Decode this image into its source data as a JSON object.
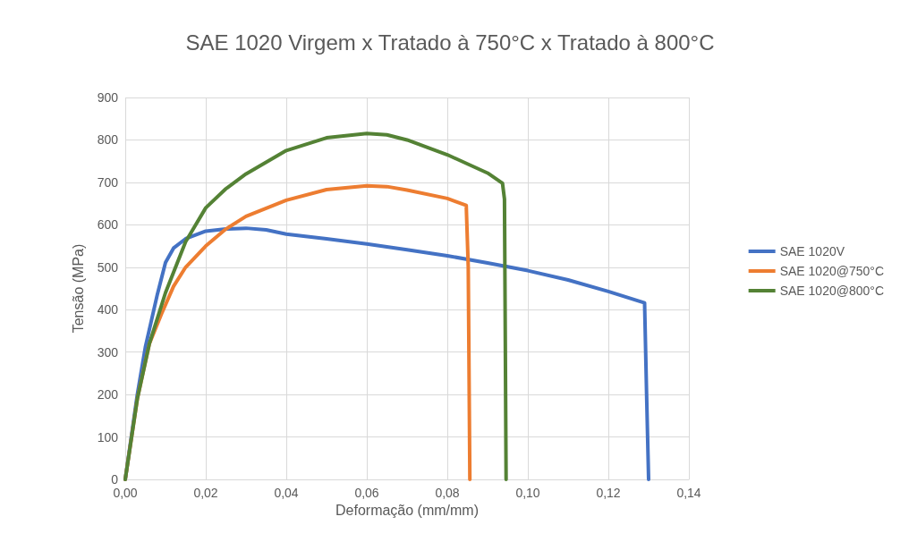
{
  "chart_data": {
    "type": "line",
    "title": "SAE 1020 Virgem x Tratado à 750°C x Tratado à 800°C",
    "xlabel": "Deformação (mm/mm)",
    "ylabel": "Tensão (MPa)",
    "xlim": [
      0,
      0.14
    ],
    "xticks": [
      {
        "value": 0,
        "label": "0,00"
      },
      {
        "value": 0.02,
        "label": "0,02"
      },
      {
        "value": 0.04,
        "label": "0,04"
      },
      {
        "value": 0.06,
        "label": "0,06"
      },
      {
        "value": 0.08,
        "label": "0,08"
      },
      {
        "value": 0.1,
        "label": "0,10"
      },
      {
        "value": 0.12,
        "label": "0,12"
      },
      {
        "value": 0.14,
        "label": "0,14"
      }
    ],
    "ylim": [
      0,
      900
    ],
    "yticks": [
      0,
      100,
      200,
      300,
      400,
      500,
      600,
      700,
      800,
      900
    ],
    "grid": true,
    "legend": "right",
    "marker": "none",
    "line_style": "solid",
    "series": [
      {
        "name": "SAE 1020V",
        "color": "#4472c4",
        "x": [
          0,
          0.003,
          0.005,
          0.008,
          0.01,
          0.012,
          0.015,
          0.02,
          0.025,
          0.03,
          0.035,
          0.04,
          0.05,
          0.06,
          0.07,
          0.08,
          0.09,
          0.1,
          0.11,
          0.12,
          0.129,
          0.1295,
          0.13
        ],
        "values": [
          0,
          200,
          312,
          437,
          511,
          545,
          567,
          585,
          590,
          592,
          588,
          578,
          567,
          555,
          541,
          527,
          510,
          492,
          470,
          443,
          416,
          200,
          0
        ]
      },
      {
        "name": "SAE 1020@750°C",
        "color": "#ed7d31",
        "x": [
          0,
          0.003,
          0.006,
          0.009,
          0.012,
          0.015,
          0.02,
          0.025,
          0.03,
          0.04,
          0.05,
          0.06,
          0.065,
          0.07,
          0.08,
          0.0847,
          0.0852,
          0.0856
        ],
        "values": [
          0,
          190,
          320,
          390,
          455,
          500,
          550,
          590,
          620,
          658,
          683,
          692,
          690,
          682,
          662,
          646,
          500,
          0
        ]
      },
      {
        "name": "SAE 1020@800°C",
        "color": "#548235",
        "x": [
          0,
          0.003,
          0.006,
          0.01,
          0.015,
          0.02,
          0.025,
          0.03,
          0.04,
          0.05,
          0.06,
          0.065,
          0.07,
          0.08,
          0.09,
          0.0937,
          0.0942,
          0.0946
        ],
        "values": [
          0,
          190,
          320,
          440,
          560,
          640,
          685,
          720,
          775,
          805,
          815,
          812,
          800,
          765,
          722,
          698,
          660,
          0
        ]
      }
    ]
  }
}
